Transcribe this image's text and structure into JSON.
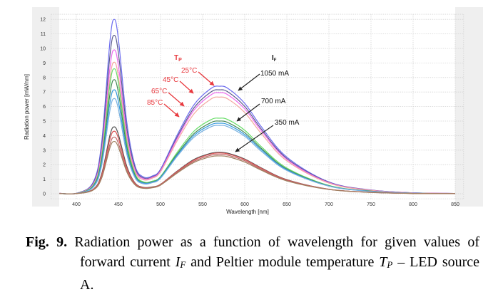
{
  "chart_data": {
    "type": "line",
    "title": "",
    "xlabel": "Wavelength [nm]",
    "ylabel": "Radiation power [mW/nm]",
    "xlim": [
      370,
      860
    ],
    "ylim": [
      -0.35,
      12.35
    ],
    "xticks": [
      400,
      450,
      500,
      550,
      600,
      650,
      700,
      750,
      800,
      850
    ],
    "yticks": [
      0,
      1,
      2,
      3,
      4,
      5,
      6,
      7,
      8,
      9,
      10,
      11,
      12
    ],
    "grid": true,
    "grid_style": "dotted",
    "legend": "none",
    "x": [
      380,
      400,
      420,
      430,
      440,
      445,
      450,
      460,
      470,
      480,
      490,
      500,
      520,
      540,
      560,
      570,
      580,
      600,
      620,
      650,
      700,
      750,
      800,
      850
    ],
    "series": [
      {
        "color": "#6b6bef",
        "values": [
          0.03,
          0.03,
          0.79,
          3.51,
          10.54,
          12.0,
          10.62,
          4.89,
          1.88,
          1.15,
          1.22,
          1.69,
          4.07,
          6.14,
          7.25,
          7.4,
          7.25,
          6.22,
          4.59,
          2.52,
          0.81,
          0.26,
          0.06,
          0.02
        ]
      },
      {
        "color": "#5a5a8c",
        "values": [
          0.03,
          0.03,
          0.72,
          3.19,
          9.58,
          10.9,
          9.66,
          4.46,
          1.74,
          1.08,
          1.16,
          1.62,
          3.93,
          5.93,
          7.01,
          7.15,
          7.01,
          6.01,
          4.43,
          2.43,
          0.79,
          0.25,
          0.06,
          0.02
        ]
      },
      {
        "color": "#ee66ee",
        "values": [
          0.03,
          0.03,
          0.66,
          2.91,
          8.72,
          9.9,
          8.79,
          4.07,
          1.61,
          1.03,
          1.12,
          1.58,
          3.82,
          5.77,
          6.81,
          6.95,
          6.81,
          5.84,
          4.31,
          2.36,
          0.76,
          0.24,
          0.06,
          0.02
        ]
      },
      {
        "color": "#f4a8a0",
        "values": [
          0.03,
          0.03,
          0.61,
          2.66,
          7.98,
          9.05,
          8.05,
          3.74,
          1.49,
          0.96,
          1.07,
          1.51,
          3.66,
          5.52,
          6.52,
          6.65,
          6.52,
          5.59,
          4.12,
          2.26,
          0.73,
          0.23,
          0.05,
          0.02
        ]
      },
      {
        "color": "#66dd66",
        "values": [
          0.02,
          0.02,
          0.57,
          2.51,
          7.56,
          8.6,
          7.61,
          3.5,
          1.34,
          0.81,
          0.86,
          1.18,
          2.86,
          4.32,
          5.1,
          5.2,
          5.1,
          4.37,
          3.22,
          1.77,
          0.57,
          0.18,
          0.04,
          0.02
        ]
      },
      {
        "color": "#448855",
        "values": [
          0.02,
          0.02,
          0.52,
          2.3,
          6.9,
          7.85,
          6.95,
          3.21,
          1.24,
          0.76,
          0.82,
          1.14,
          2.75,
          4.15,
          4.9,
          5.0,
          4.9,
          4.2,
          3.1,
          1.7,
          0.55,
          0.18,
          0.04,
          0.02
        ]
      },
      {
        "color": "#3399dd",
        "values": [
          0.02,
          0.02,
          0.48,
          2.1,
          6.3,
          7.15,
          6.34,
          2.94,
          1.15,
          0.73,
          0.79,
          1.11,
          2.67,
          4.03,
          4.75,
          4.85,
          4.75,
          4.07,
          3.01,
          1.65,
          0.53,
          0.17,
          0.04,
          0.01
        ]
      },
      {
        "color": "#77b0e0",
        "values": [
          0.02,
          0.02,
          0.44,
          1.92,
          5.77,
          6.55,
          5.82,
          2.7,
          1.07,
          0.68,
          0.76,
          1.06,
          2.59,
          3.9,
          4.61,
          4.7,
          4.61,
          3.95,
          2.91,
          1.6,
          0.52,
          0.16,
          0.04,
          0.01
        ]
      },
      {
        "color": "#555555",
        "values": [
          0.01,
          0.01,
          0.31,
          1.35,
          4.05,
          4.6,
          4.07,
          1.88,
          0.72,
          0.44,
          0.47,
          0.65,
          1.57,
          2.37,
          2.79,
          2.85,
          2.79,
          2.39,
          1.77,
          0.97,
          0.31,
          0.1,
          0.02,
          0.01
        ]
      },
      {
        "color": "#dd5555",
        "values": [
          0.01,
          0.01,
          0.29,
          1.26,
          3.78,
          4.3,
          3.81,
          1.76,
          0.69,
          0.42,
          0.45,
          0.64,
          1.54,
          2.32,
          2.74,
          2.8,
          2.74,
          2.35,
          1.74,
          0.95,
          0.31,
          0.1,
          0.02,
          0.01
        ]
      },
      {
        "color": "#bb6666",
        "values": [
          0.01,
          0.01,
          0.26,
          1.14,
          3.43,
          3.9,
          3.46,
          1.6,
          0.63,
          0.4,
          0.44,
          0.61,
          1.49,
          2.24,
          2.65,
          2.7,
          2.65,
          2.27,
          1.67,
          0.92,
          0.3,
          0.09,
          0.02,
          0.01
        ]
      },
      {
        "color": "#a08060",
        "values": [
          0.01,
          0.01,
          0.25,
          1.06,
          3.18,
          3.6,
          3.2,
          1.49,
          0.59,
          0.37,
          0.41,
          0.59,
          1.43,
          2.16,
          2.55,
          2.6,
          2.55,
          2.18,
          1.61,
          0.88,
          0.29,
          0.09,
          0.02,
          0.01
        ]
      }
    ],
    "annotations": {
      "temperature_header": {
        "main": "T",
        "sub": "P",
        "color": "#e8383d"
      },
      "current_header": {
        "main": "I",
        "sub": "F",
        "color": "#111111"
      },
      "temperatures": [
        "25°C",
        "45°C",
        "65°C",
        "85°C"
      ],
      "temperature_color": "#e8383d",
      "currents": [
        "1050 mA",
        "700 mA",
        "350 mA"
      ],
      "current_color": "#111111"
    }
  },
  "caption": {
    "label": "Fig. 9.",
    "part1": " Radiation power as a function of wavelength for given values of forward current ",
    "sym1_main": "I",
    "sym1_sub": "F",
    "part2": " and Peltier module temperature ",
    "sym2_main": "T",
    "sym2_sub": "P",
    "part3": " – LED source A."
  }
}
